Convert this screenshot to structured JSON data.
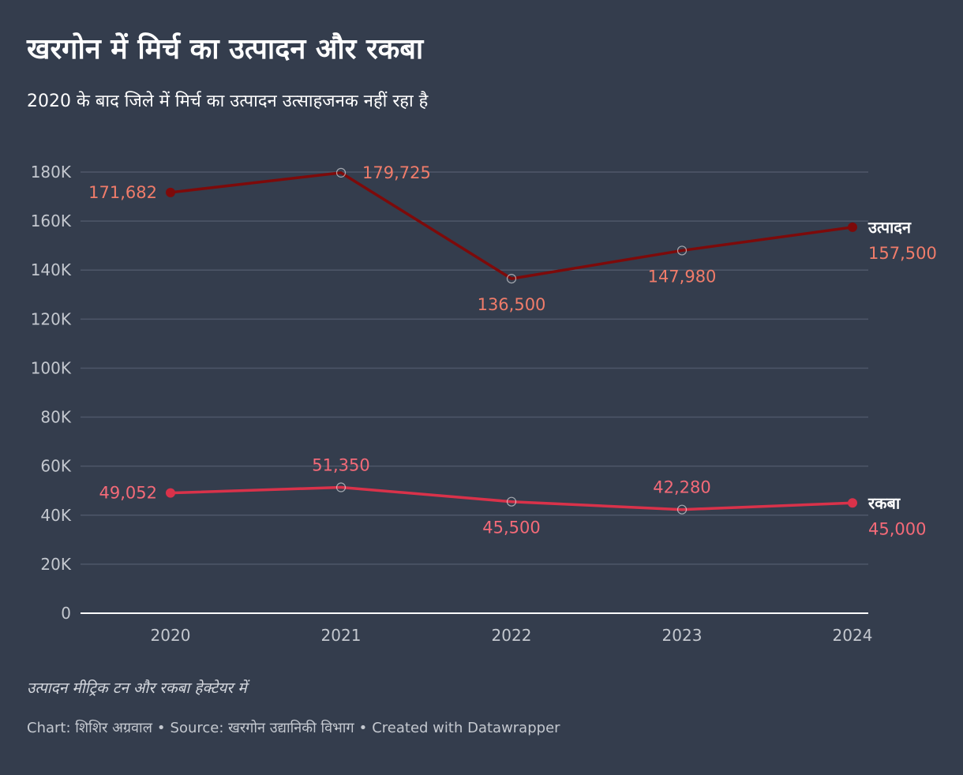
{
  "header": {
    "title": "खरगोन में मिर्च का उत्पादन और रकबा",
    "subtitle": "2020 के बाद जिले में मिर्च का उत्पादन उत्साहजनक नहीं रहा है"
  },
  "footer": {
    "note": "उत्पादन मीट्रिक टन और रकबा हेक्टेयर में",
    "chart_credit": "Chart: शिशिर अग्रवाल",
    "source": "Source: खरगोन उद्यानिकी विभाग",
    "created_with": "Created with Datawrapper",
    "separator": "•"
  },
  "chart_data": {
    "type": "line",
    "x": [
      "2020",
      "2021",
      "2022",
      "2023",
      "2024"
    ],
    "ylim": [
      0,
      180000
    ],
    "yticks": [
      {
        "value": 0,
        "label": "0"
      },
      {
        "value": 20000,
        "label": "20K"
      },
      {
        "value": 40000,
        "label": "40K"
      },
      {
        "value": 60000,
        "label": "60K"
      },
      {
        "value": 80000,
        "label": "80K"
      },
      {
        "value": 100000,
        "label": "100K"
      },
      {
        "value": 120000,
        "label": "120K"
      },
      {
        "value": 140000,
        "label": "140K"
      },
      {
        "value": 160000,
        "label": "160K"
      },
      {
        "value": 180000,
        "label": "180K"
      }
    ],
    "grid": true,
    "series": [
      {
        "name": "उत्पादन",
        "color": "#7d0a0a",
        "label_color": "#f07c6a",
        "values": [
          171682,
          179725,
          136500,
          147980,
          157500
        ],
        "labels": [
          "171,682",
          "179,725",
          "136,500",
          "147,980",
          "157,500"
        ],
        "label_positions": [
          "left",
          "right",
          "below",
          "below",
          "end"
        ]
      },
      {
        "name": "रकबा",
        "color": "#d9324a",
        "label_color": "#f46a78",
        "values": [
          49052,
          51350,
          45500,
          42280,
          45000
        ],
        "labels": [
          "49,052",
          "51,350",
          "45,500",
          "42,280",
          "45,000"
        ],
        "label_positions": [
          "left",
          "above",
          "below",
          "above",
          "end"
        ]
      }
    ],
    "colors": {
      "background": "#343d4d",
      "gridline": "#4e5769",
      "baseline": "#ffffff",
      "tick_label": "#c4c8cf"
    }
  }
}
